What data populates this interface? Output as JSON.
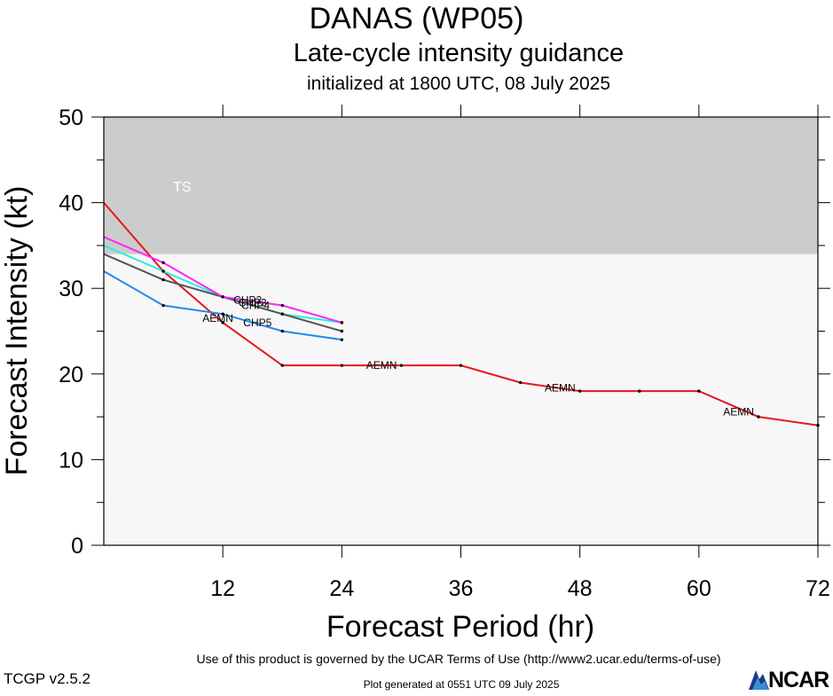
{
  "title": "DANAS (WP05)",
  "subtitle": "Late-cycle intensity guidance",
  "initialized": "initialized at 1800 UTC, 08 July 2025",
  "footer": {
    "terms": "Use of this product is governed by the UCAR Terms of Use (http://www2.ucar.edu/terms-of-use)",
    "version": "TCGP v2.5.2",
    "generated": "Plot generated at 0551 UTC   09 July 2025",
    "logo_text": "NCAR"
  },
  "chart_data": {
    "type": "line",
    "xlabel": "Forecast Period (hr)",
    "ylabel": "Forecast Intensity (kt)",
    "xlim": [
      0,
      72
    ],
    "ylim": [
      0,
      50
    ],
    "xticks": [
      12,
      24,
      36,
      48,
      60,
      72
    ],
    "yticks": [
      0,
      10,
      20,
      30,
      40,
      50
    ],
    "bands": [
      {
        "label": "TS",
        "from": 34,
        "to": 50,
        "color": "#cccccc"
      }
    ],
    "background_color": "#f7f7f7",
    "series": [
      {
        "name": "AEMN",
        "color": "#e8161d",
        "x": [
          0,
          6,
          12,
          18,
          24,
          30,
          36,
          42,
          48,
          54,
          60,
          66,
          72
        ],
        "y": [
          40,
          32,
          26,
          21,
          21,
          21,
          21,
          19,
          18,
          18,
          18,
          15,
          14
        ]
      },
      {
        "name": "CHP2",
        "color": "#ff22ff",
        "x": [
          0,
          6,
          12,
          18,
          24
        ],
        "y": [
          36,
          33,
          29,
          28,
          26
        ]
      },
      {
        "name": "CHP3",
        "color": "#22eedd",
        "x": [
          0,
          6,
          12,
          18,
          24
        ],
        "y": [
          35,
          32,
          29,
          27,
          26
        ]
      },
      {
        "name": "CHP4",
        "color": "#555555",
        "x": [
          0,
          6,
          12,
          18,
          24
        ],
        "y": [
          34,
          31,
          29,
          27,
          25
        ]
      },
      {
        "name": "CHP5",
        "color": "#2288ee",
        "x": [
          0,
          6,
          12,
          18,
          24
        ],
        "y": [
          32,
          28,
          27,
          25,
          24
        ]
      }
    ],
    "line_labels": [
      {
        "text": "AEMN",
        "x": 11.5,
        "y": 26.5
      },
      {
        "text": "AEMN",
        "x": 28,
        "y": 21
      },
      {
        "text": "AEMN",
        "x": 46,
        "y": 18.4
      },
      {
        "text": "AEMN",
        "x": 64,
        "y": 15.6
      },
      {
        "text": "CHP2",
        "x": 14.5,
        "y": 28.6
      },
      {
        "text": "CHP3",
        "x": 15,
        "y": 28.3
      },
      {
        "text": "CHP4",
        "x": 15.3,
        "y": 28.0
      },
      {
        "text": "CHP5",
        "x": 15.5,
        "y": 26.0
      }
    ]
  }
}
